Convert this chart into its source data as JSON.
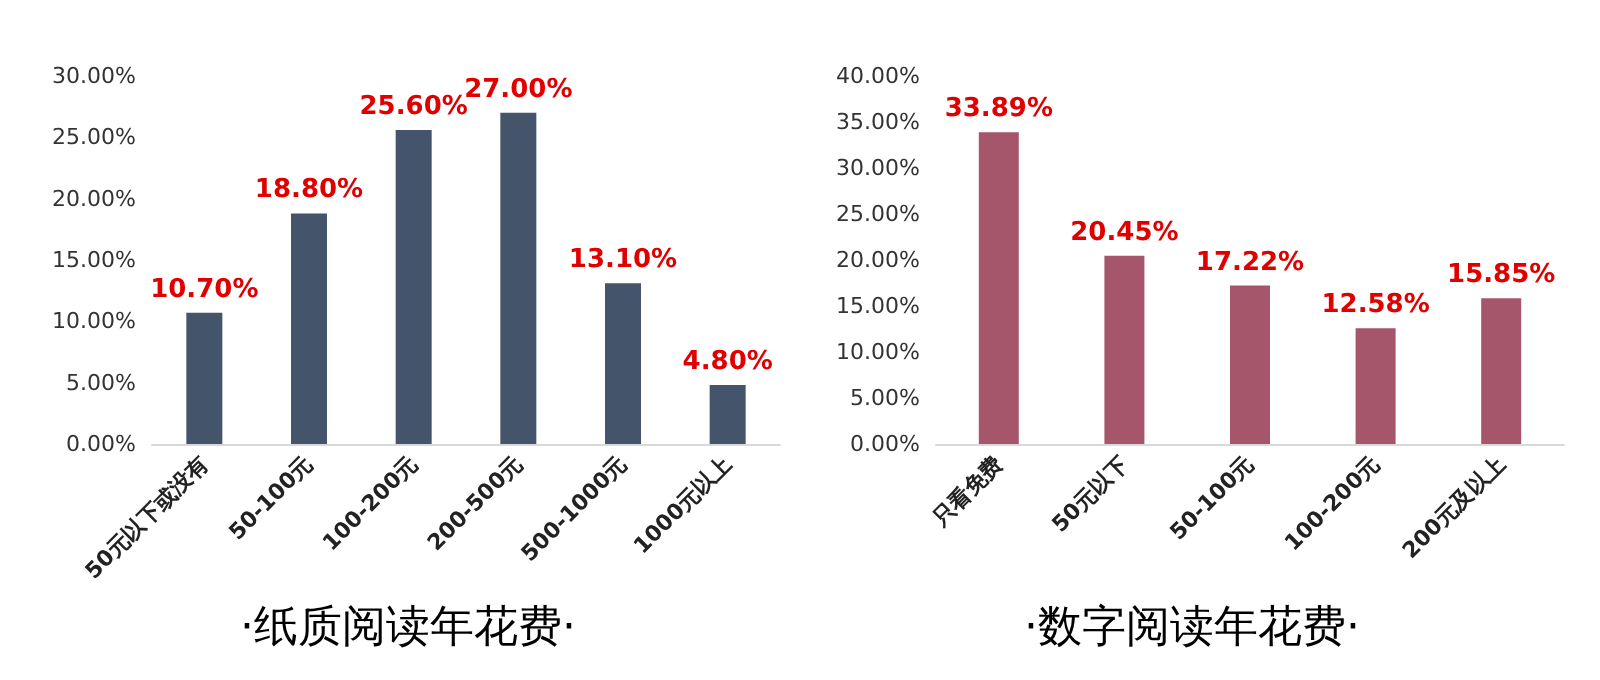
{
  "chart_data": [
    {
      "type": "bar",
      "title": "·纸质阅读年花费·",
      "categories": [
        "50元以下或没有",
        "50-100元",
        "100-200元",
        "200-500元",
        "500-1000元",
        "1000元以上"
      ],
      "series": [
        {
          "color": "#44546a",
          "values": [
            10.7,
            18.8,
            25.6,
            27.0,
            13.1,
            4.8
          ],
          "value_labels": [
            "10.70%",
            "18.80%",
            "25.60%",
            "27.00%",
            "13.10%",
            "4.80%"
          ]
        }
      ],
      "ylim": [
        0,
        30
      ],
      "yticks": [
        {
          "value": 0,
          "label": "0.00%"
        },
        {
          "value": 5,
          "label": "5.00%"
        },
        {
          "value": 10,
          "label": "10.00%"
        },
        {
          "value": 15,
          "label": "15.00%"
        },
        {
          "value": 20,
          "label": "20.00%"
        },
        {
          "value": 25,
          "label": "25.00%"
        },
        {
          "value": 30,
          "label": "30.00%"
        }
      ],
      "grid": false
    },
    {
      "type": "bar",
      "title": "·数字阅读年花费·",
      "categories": [
        "只看免费",
        "50元以下",
        "50-100元",
        "100-200元",
        "200元及以上"
      ],
      "series": [
        {
          "color": "#a5566a",
          "values": [
            33.89,
            20.45,
            17.22,
            12.58,
            15.85
          ],
          "value_labels": [
            "33.89%",
            "20.45%",
            "17.22%",
            "12.58%",
            "15.85%"
          ]
        }
      ],
      "ylim": [
        0,
        40
      ],
      "yticks": [
        {
          "value": 0,
          "label": "0.00%"
        },
        {
          "value": 5,
          "label": "5.00%"
        },
        {
          "value": 10,
          "label": "10.00%"
        },
        {
          "value": 15,
          "label": "15.00%"
        },
        {
          "value": 20,
          "label": "20.00%"
        },
        {
          "value": 25,
          "label": "25.00%"
        },
        {
          "value": 30,
          "label": "30.00%"
        },
        {
          "value": 35,
          "label": "35.00%"
        },
        {
          "value": 40,
          "label": "40.00%"
        }
      ],
      "grid": false
    }
  ]
}
